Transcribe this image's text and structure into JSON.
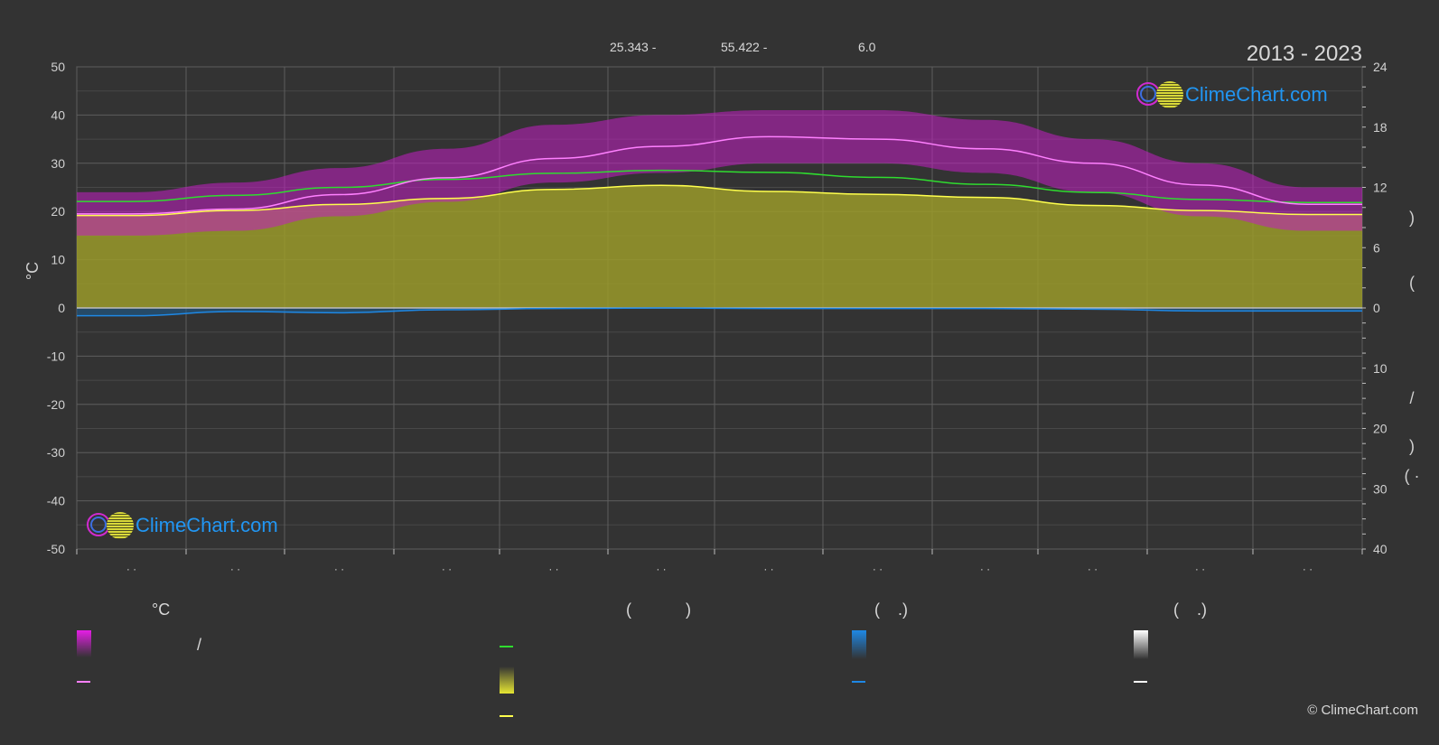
{
  "header": {
    "coord_lat": "25.343 -",
    "coord_lon": "55.422 -",
    "elevation": "6.0",
    "years": "2013 - 2023"
  },
  "brand": {
    "logo_text": "ClimeChart.com",
    "copyright": "© ClimeChart.com"
  },
  "legend": {
    "temp_head": "°C",
    "col2_head": "(            )",
    "col3_head": "(    .)",
    "col4_head": "(    .)",
    "slash": "/"
  },
  "colors": {
    "background": "#333333",
    "daily_range": "#e61ee6",
    "mean_max": "#ff80ff",
    "daylight": "#2fdc2f",
    "sunshine": "#e6e633",
    "sunshine_line": "#ffff4d",
    "precip": "#1e88e5",
    "snow": "#ffffff",
    "logo_text": "#2196f3"
  },
  "chart_data": {
    "type": "line",
    "x_months": [
      1,
      2,
      3,
      4,
      5,
      6,
      7,
      8,
      9,
      10,
      11,
      12
    ],
    "month_labels": [
      "· ·",
      "· ·",
      "· ·",
      "· ·",
      "· ·",
      "· ·",
      "· ·",
      "· ·",
      "· ·",
      "· ·",
      "· ·",
      "· ·"
    ],
    "y_left": {
      "label": "°C",
      "range": [
        -50,
        50
      ],
      "ticks": [
        50,
        40,
        30,
        20,
        10,
        0,
        -10,
        -20,
        -30,
        -40,
        -50
      ]
    },
    "y_right_top": {
      "range": [
        0,
        24
      ],
      "ticks": [
        24,
        18,
        12,
        6,
        0
      ],
      "label_chars": [
        ")",
        "("
      ]
    },
    "y_right_bottom": {
      "range": [
        0,
        40
      ],
      "ticks": [
        10,
        20,
        30,
        40
      ],
      "label_chars": [
        "/",
        ")",
        "( ·"
      ]
    },
    "grid": true,
    "series": [
      {
        "key": "mean_max_temp",
        "color": "#ff80ff",
        "values": [
          19.5,
          20.5,
          23.5,
          27,
          31,
          33.5,
          35.5,
          35,
          33,
          30,
          25.5,
          21.5
        ]
      },
      {
        "key": "daily_range_high",
        "color": "#e61ee6",
        "values": [
          24,
          26,
          29,
          33,
          38,
          40,
          41,
          41,
          39,
          35,
          30,
          25
        ]
      },
      {
        "key": "daily_range_low",
        "color": "#e61ee6",
        "values": [
          15,
          16,
          19,
          22,
          26,
          28,
          30,
          30,
          28,
          24,
          19,
          16
        ]
      },
      {
        "key": "daylight_hours",
        "color": "#2fdc2f",
        "axis": "right_top",
        "values": [
          10.6,
          11.2,
          12.0,
          12.8,
          13.4,
          13.7,
          13.5,
          13.0,
          12.3,
          11.5,
          10.8,
          10.5
        ]
      },
      {
        "key": "sunshine_hours",
        "color": "#ffff4d",
        "axis": "right_top",
        "values": [
          9.2,
          9.7,
          10.3,
          10.9,
          11.8,
          12.2,
          11.6,
          11.3,
          11.0,
          10.2,
          9.7,
          9.3
        ]
      },
      {
        "key": "precipitation",
        "color": "#1e88e5",
        "axis": "right_bottom",
        "values": [
          1.3,
          0.6,
          0.8,
          0.3,
          0.1,
          0.0,
          0.1,
          0.1,
          0.1,
          0.2,
          0.5,
          0.5
        ]
      }
    ]
  }
}
